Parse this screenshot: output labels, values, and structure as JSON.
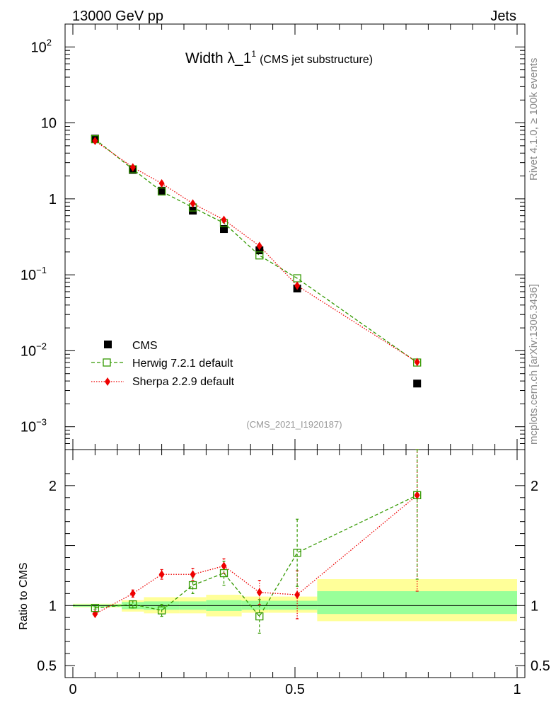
{
  "header": {
    "left": "13000 GeV pp",
    "right": "Jets"
  },
  "sidebar": {
    "rivet": "Rivet 4.1.0, ≥ 100k events",
    "mcplots": "mcplots.cern.ch [arXiv:1306.3436]"
  },
  "chart_data": {
    "type": "scatter",
    "title": "Width λ_1",
    "title_superscript": "1",
    "subtitle": "(CMS jet substructure)",
    "analysis_tag": "(CMS_2021_I1920187)",
    "xlabel": "",
    "ylabel_ratio": "Ratio to CMS",
    "x_range": [
      0,
      1
    ],
    "y_range_log": [
      0.0005,
      200
    ],
    "ratio_range": [
      0.4,
      2.3
    ],
    "x_ticks": [
      "0",
      "0.5",
      "1"
    ],
    "y_ticks_main": [
      {
        "v": 100,
        "base": "10",
        "exp": "2"
      },
      {
        "v": 10,
        "base": "10",
        "exp": ""
      },
      {
        "v": 1,
        "base": "1",
        "exp": ""
      },
      {
        "v": 0.1,
        "base": "10",
        "exp": "−1"
      },
      {
        "v": 0.01,
        "base": "10",
        "exp": "−2"
      },
      {
        "v": 0.001,
        "base": "10",
        "exp": "−3"
      }
    ],
    "y_ticks_ratio": [
      {
        "v": 2,
        "label": "2"
      },
      {
        "v": 1,
        "label": "1"
      },
      {
        "v": 0.5,
        "label": "0.5"
      }
    ],
    "x": [
      0.05,
      0.135,
      0.2,
      0.27,
      0.34,
      0.42,
      0.505,
      0.775
    ],
    "bin_edges": [
      0.0,
      0.11,
      0.16,
      0.24,
      0.3,
      0.38,
      0.44,
      0.55,
      1.0
    ],
    "band_yellow": [
      [
        0.985,
        1.015
      ],
      [
        0.95,
        1.045
      ],
      [
        0.935,
        1.07
      ],
      [
        0.935,
        1.07
      ],
      [
        0.91,
        1.09
      ],
      [
        0.94,
        1.075
      ],
      [
        0.94,
        1.075
      ],
      [
        0.87,
        1.22
      ]
    ],
    "band_green": [
      [
        0.99,
        1.01
      ],
      [
        0.97,
        1.03
      ],
      [
        0.965,
        1.035
      ],
      [
        0.965,
        1.035
      ],
      [
        0.955,
        1.045
      ],
      [
        0.965,
        1.04
      ],
      [
        0.965,
        1.04
      ],
      [
        0.93,
        1.12
      ]
    ],
    "series": [
      {
        "name": "CMS",
        "color": "#000000",
        "values": [
          6.2,
          2.4,
          1.28,
          0.7,
          0.4,
          0.21,
          0.066,
          0.0037
        ],
        "ratio": [
          1,
          1,
          1,
          1,
          1,
          1,
          1,
          1
        ]
      },
      {
        "name": "Herwig 7.2.1 default",
        "color": "#339900",
        "values": [
          6.1,
          2.45,
          1.25,
          0.77,
          0.48,
          0.18,
          0.09,
          0.007
        ],
        "ratio": [
          0.98,
          1.01,
          0.96,
          1.17,
          1.27,
          0.91,
          1.44,
          1.92
        ],
        "ratio_err": [
          0.01,
          0.03,
          0.05,
          0.07,
          0.1,
          0.14,
          0.28,
          0.7
        ]
      },
      {
        "name": "Sherpa 2.2.9 default",
        "color": "#ee0000",
        "values": [
          5.8,
          2.6,
          1.6,
          0.87,
          0.53,
          0.24,
          0.072,
          0.0071
        ],
        "ratio": [
          0.93,
          1.1,
          1.26,
          1.26,
          1.33,
          1.11,
          1.09,
          1.92
        ],
        "ratio_err": [
          0.01,
          0.03,
          0.04,
          0.05,
          0.06,
          0.1,
          0.2,
          0.8
        ]
      }
    ]
  }
}
